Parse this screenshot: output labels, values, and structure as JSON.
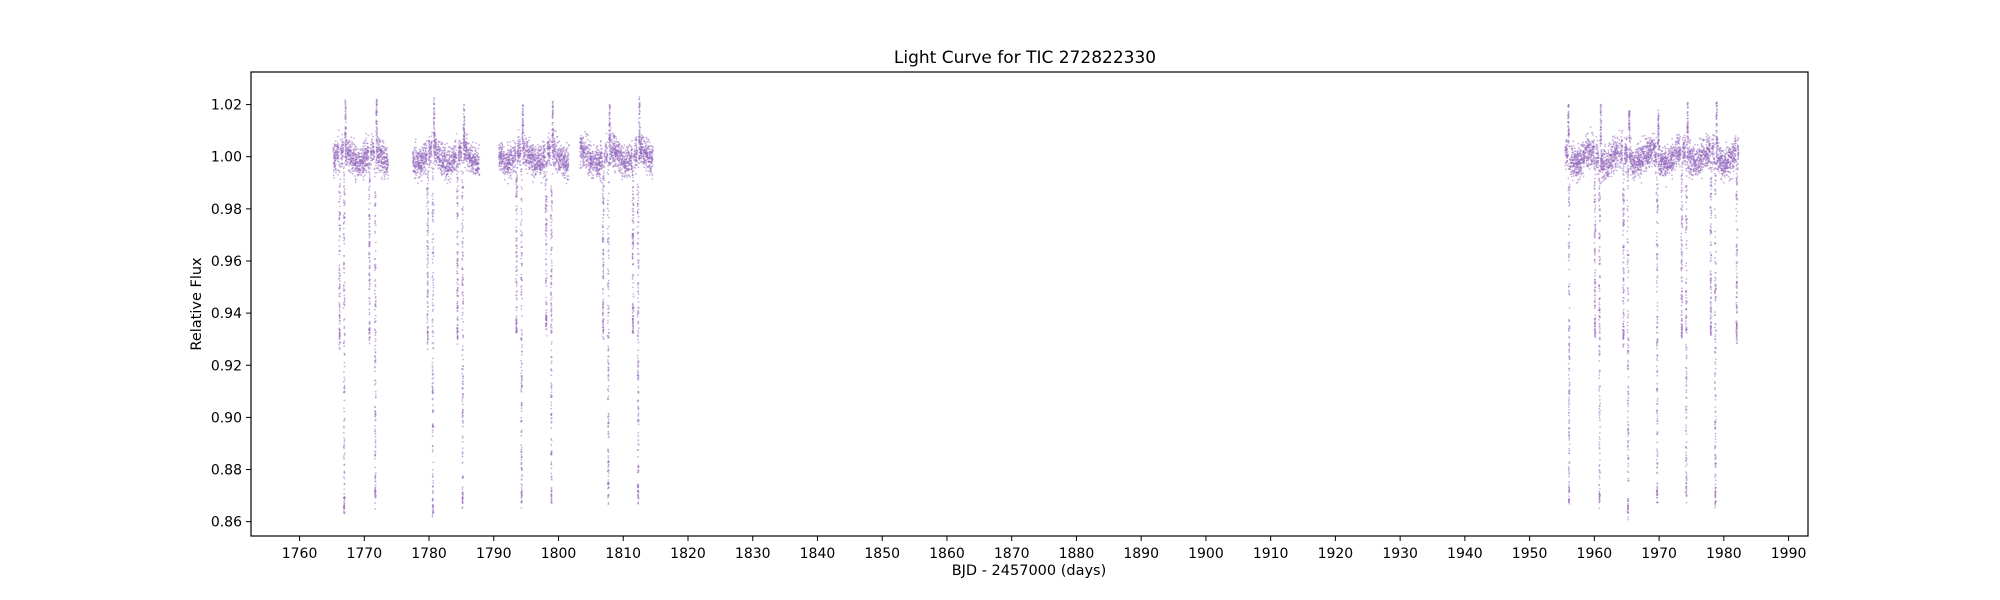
{
  "chart_data": {
    "type": "scatter",
    "title": "Light Curve for TIC 272822330",
    "xlabel": "BJD - 2457000 (days)",
    "ylabel": "Relative Flux",
    "xlim": [
      1752.5,
      1993.0
    ],
    "ylim": [
      0.8545,
      1.0325
    ],
    "x_ticks": [
      1760,
      1770,
      1780,
      1790,
      1800,
      1810,
      1820,
      1830,
      1840,
      1850,
      1860,
      1870,
      1880,
      1890,
      1900,
      1910,
      1920,
      1930,
      1940,
      1950,
      1960,
      1970,
      1980,
      1990
    ],
    "x_tick_labels": [
      "1760",
      "1770",
      "1780",
      "1790",
      "1800",
      "1810",
      "1820",
      "1830",
      "1840",
      "1850",
      "1860",
      "1870",
      "1880",
      "1890",
      "1900",
      "1910",
      "1920",
      "1930",
      "1940",
      "1950",
      "1960",
      "1970",
      "1980",
      "1990"
    ],
    "y_ticks": [
      0.86,
      0.88,
      0.9,
      0.92,
      0.94,
      0.96,
      0.98,
      1.0,
      1.02
    ],
    "y_tick_labels": [
      "0.86",
      "0.88",
      "0.90",
      "0.92",
      "0.94",
      "0.96",
      "0.98",
      "1.00",
      "1.02"
    ],
    "grid": false,
    "marker_color": "#9467bd",
    "baseline_flux": 1.0,
    "observing_segments": [
      [
        1765.2,
        1773.7
      ],
      [
        1777.5,
        1787.8
      ],
      [
        1790.8,
        1801.6
      ],
      [
        1803.3,
        1814.6
      ],
      [
        1955.5,
        1982.3
      ]
    ],
    "primary_eclipses": [
      {
        "time": 1766.9,
        "min_flux": 0.864
      },
      {
        "time": 1771.7,
        "min_flux": 0.867
      },
      {
        "time": 1780.6,
        "min_flux": 0.863
      },
      {
        "time": 1785.2,
        "min_flux": 0.867
      },
      {
        "time": 1794.3,
        "min_flux": 0.867
      },
      {
        "time": 1798.9,
        "min_flux": 0.867
      },
      {
        "time": 1807.7,
        "min_flux": 0.869
      },
      {
        "time": 1812.3,
        "min_flux": 0.868
      },
      {
        "time": 1956.1,
        "min_flux": 0.867
      },
      {
        "time": 1960.8,
        "min_flux": 0.867
      },
      {
        "time": 1965.2,
        "min_flux": 0.863
      },
      {
        "time": 1969.7,
        "min_flux": 0.869
      },
      {
        "time": 1974.2,
        "min_flux": 0.869
      },
      {
        "time": 1978.7,
        "min_flux": 0.867
      }
    ],
    "secondary_eclipses": [
      {
        "time": 1766.2,
        "min_flux": 0.928
      },
      {
        "time": 1770.8,
        "min_flux": 0.93
      },
      {
        "time": 1779.8,
        "min_flux": 0.928
      },
      {
        "time": 1784.4,
        "min_flux": 0.93
      },
      {
        "time": 1793.5,
        "min_flux": 0.932
      },
      {
        "time": 1798.1,
        "min_flux": 0.933
      },
      {
        "time": 1806.9,
        "min_flux": 0.931
      },
      {
        "time": 1811.5,
        "min_flux": 0.932
      },
      {
        "time": 1960.1,
        "min_flux": 0.932
      },
      {
        "time": 1964.5,
        "min_flux": 0.929
      },
      {
        "time": 1973.5,
        "min_flux": 0.93
      },
      {
        "time": 1978.0,
        "min_flux": 0.931
      },
      {
        "time": 1982.0,
        "min_flux": 0.93
      }
    ],
    "brightening_peaks": [
      {
        "time": 1767.1,
        "max_flux": 1.022
      },
      {
        "time": 1771.9,
        "max_flux": 1.023
      },
      {
        "time": 1780.8,
        "max_flux": 1.023
      },
      {
        "time": 1785.4,
        "max_flux": 1.022
      },
      {
        "time": 1794.5,
        "max_flux": 1.02
      },
      {
        "time": 1799.1,
        "max_flux": 1.022
      },
      {
        "time": 1807.9,
        "max_flux": 1.02
      },
      {
        "time": 1812.5,
        "max_flux": 1.023
      },
      {
        "time": 1956.0,
        "max_flux": 1.02
      },
      {
        "time": 1961.0,
        "max_flux": 1.021
      },
      {
        "time": 1965.4,
        "max_flux": 1.018
      },
      {
        "time": 1969.9,
        "max_flux": 1.018
      },
      {
        "time": 1974.4,
        "max_flux": 1.021
      },
      {
        "time": 1978.9,
        "max_flux": 1.021
      }
    ]
  }
}
